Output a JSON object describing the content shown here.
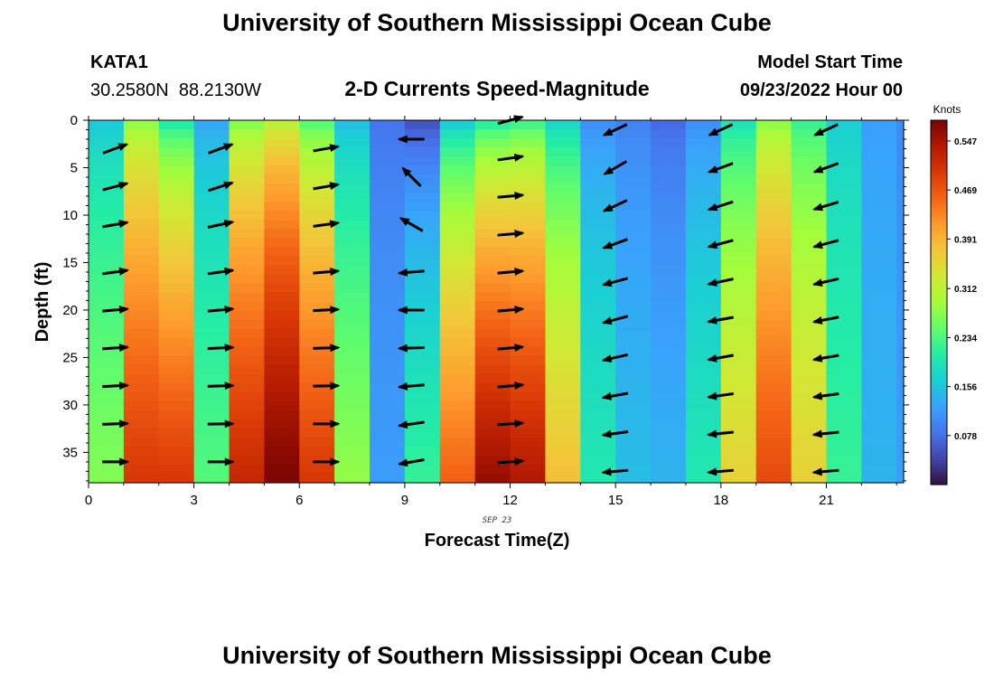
{
  "header": {
    "title": "University of Southern Mississippi Ocean Cube",
    "station_id": "KATA1",
    "coordinates": "30.2580N  88.2130W",
    "subtitle": "2-D Currents Speed-Magnitude",
    "model_start_label": "Model Start Time",
    "model_start_value": "09/23/2022 Hour 00"
  },
  "footer": {
    "title": "University of Southern Mississippi Ocean Cube"
  },
  "chart_data": {
    "type": "heatmap",
    "title": "2-D Currents Speed-Magnitude",
    "xlabel": "Forecast Time(Z)",
    "ylabel": "Depth (ft)",
    "date_label": "SEP 23",
    "xlim": [
      0,
      23.2
    ],
    "ylim": [
      38.2,
      0
    ],
    "x_ticks": [
      0,
      3,
      6,
      9,
      12,
      15,
      18,
      21
    ],
    "y_ticks": [
      0,
      5,
      10,
      15,
      20,
      25,
      30,
      35
    ],
    "colorbar": {
      "label": "Knots",
      "range": [
        0.0,
        0.58
      ],
      "ticks": [
        "0.547",
        "0.469",
        "0.391",
        "0.312",
        "0.234",
        "0.156",
        "0.078"
      ],
      "colormap": [
        "#30123b",
        "#4145ab",
        "#4675ed",
        "#39a2fc",
        "#1bcfd4",
        "#24eca6",
        "#61fc6c",
        "#a4fc3b",
        "#d1e834",
        "#f3c63a",
        "#fe9b2d",
        "#f36315",
        "#d93806",
        "#b11901",
        "#7a0403"
      ]
    },
    "speed_profile": {
      "description": "Surface-to-bottom current speed (knots) for each hourly column 0-23Z",
      "hours": [
        0,
        1,
        2,
        3,
        4,
        5,
        6,
        7,
        8,
        9,
        10,
        11,
        12,
        13,
        14,
        15,
        16,
        17,
        18,
        19,
        20,
        21,
        22,
        23
      ],
      "surface_speed": [
        0.15,
        0.26,
        0.18,
        0.12,
        0.25,
        0.29,
        0.22,
        0.14,
        0.08,
        0.04,
        0.14,
        0.18,
        0.2,
        0.16,
        0.1,
        0.09,
        0.07,
        0.1,
        0.18,
        0.26,
        0.21,
        0.16,
        0.12,
        0.1
      ],
      "bottom_speed": [
        0.27,
        0.5,
        0.5,
        0.24,
        0.52,
        0.58,
        0.5,
        0.28,
        0.12,
        0.22,
        0.46,
        0.56,
        0.54,
        0.38,
        0.2,
        0.15,
        0.14,
        0.2,
        0.36,
        0.48,
        0.36,
        0.22,
        0.14,
        0.12
      ]
    },
    "vector_columns": [
      {
        "time": 0.75,
        "depths": [
          3,
          7,
          11,
          16,
          20,
          24,
          28,
          32,
          36
        ],
        "dir_deg": [
          20,
          15,
          10,
          8,
          5,
          4,
          3,
          2,
          0
        ]
      },
      {
        "time": 3.75,
        "depths": [
          3,
          7,
          11,
          16,
          20,
          24,
          28,
          32,
          36
        ],
        "dir_deg": [
          20,
          18,
          12,
          8,
          5,
          3,
          2,
          1,
          0
        ]
      },
      {
        "time": 6.75,
        "depths": [
          3,
          7,
          11,
          16,
          20,
          24,
          28,
          32,
          36
        ],
        "dir_deg": [
          10,
          10,
          8,
          5,
          3,
          2,
          1,
          0,
          0
        ]
      },
      {
        "time": 9.2,
        "depths": [
          2,
          6,
          11,
          16,
          20,
          24,
          28,
          32,
          36
        ],
        "dir_deg": [
          180,
          135,
          150,
          185,
          180,
          182,
          185,
          188,
          190
        ]
      },
      {
        "time": 12.0,
        "depths": [
          0,
          4,
          8,
          12,
          16,
          20,
          24,
          28,
          32,
          36
        ],
        "dir_deg": [
          15,
          8,
          5,
          5,
          5,
          5,
          5,
          5,
          4,
          4
        ]
      },
      {
        "time": 15.0,
        "depths": [
          1,
          5,
          9,
          13,
          17,
          21,
          25,
          29,
          33,
          37
        ],
        "dir_deg": [
          205,
          210,
          205,
          200,
          195,
          195,
          193,
          190,
          188,
          185
        ]
      },
      {
        "time": 18.0,
        "depths": [
          1,
          5,
          9,
          13,
          17,
          21,
          25,
          29,
          33,
          37
        ],
        "dir_deg": [
          205,
          200,
          198,
          195,
          192,
          190,
          190,
          188,
          186,
          185
        ]
      },
      {
        "time": 21.0,
        "depths": [
          1,
          5,
          9,
          13,
          17,
          21,
          25,
          29,
          33,
          37
        ],
        "dir_deg": [
          205,
          200,
          197,
          195,
          193,
          191,
          190,
          188,
          186,
          185
        ]
      }
    ]
  }
}
